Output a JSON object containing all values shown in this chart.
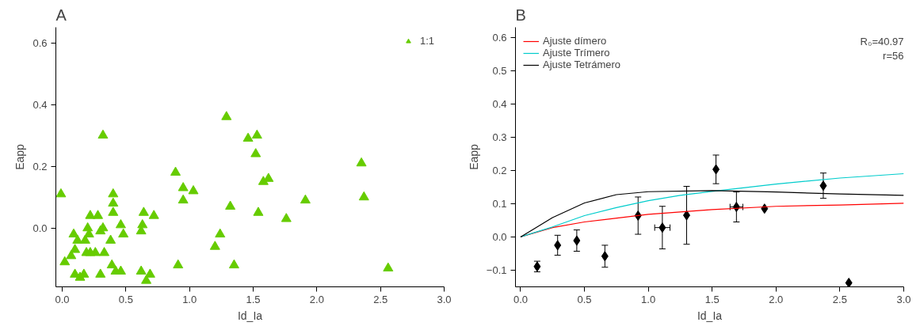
{
  "chart_data": [
    {
      "type": "scatter",
      "title": "A",
      "xlabel": "Id_Ia",
      "ylabel": "Eapp",
      "xlim": [
        -0.05,
        3.0
      ],
      "ylim": [
        -0.19,
        0.65
      ],
      "xticks": [
        {
          "value": 0,
          "label": "0.0"
        },
        0.5,
        {
          "value": 1,
          "label": "1.0"
        },
        1.5,
        {
          "value": 2,
          "label": "2.0"
        },
        2.5,
        {
          "value": 3,
          "label": "3.0"
        }
      ],
      "yticks": [
        {
          "value": 0,
          "label": "0.0"
        },
        0.2,
        0.4,
        0.6
      ],
      "grid": false,
      "legend": "top right",
      "marker": "triangle",
      "series": [
        {
          "name": "1:1",
          "color": "#66cc00",
          "x": [
            -0.01,
            0.02,
            0.07,
            0.09,
            0.1,
            0.12,
            0.1,
            0.14,
            0.17,
            0.18,
            0.2,
            0.21,
            0.22,
            0.19,
            0.22,
            0.26,
            0.28,
            0.3,
            0.32,
            0.32,
            0.33,
            0.3,
            0.38,
            0.39,
            0.4,
            0.4,
            0.4,
            0.42,
            0.46,
            0.46,
            0.48,
            0.62,
            0.63,
            0.64,
            0.62,
            0.69,
            0.66,
            0.72,
            0.89,
            0.95,
            0.95,
            1.03,
            0.91,
            1.29,
            1.32,
            1.24,
            1.2,
            1.35,
            1.46,
            1.53,
            1.52,
            1.58,
            1.62,
            1.54,
            1.76,
            1.91,
            2.35,
            2.37,
            2.56
          ],
          "values": [
            0.11,
            -0.11,
            -0.09,
            -0.02,
            -0.07,
            -0.04,
            -0.15,
            -0.16,
            -0.15,
            -0.04,
            0.0,
            -0.02,
            0.04,
            -0.08,
            -0.08,
            -0.08,
            0.04,
            -0.01,
            0.0,
            0.3,
            -0.08,
            -0.15,
            -0.04,
            -0.12,
            0.11,
            0.08,
            0.05,
            -0.14,
            -0.14,
            0.01,
            -0.02,
            -0.01,
            0.01,
            0.05,
            -0.14,
            -0.15,
            -0.17,
            0.04,
            0.18,
            0.13,
            0.09,
            0.12,
            -0.12,
            0.36,
            0.07,
            -0.02,
            -0.06,
            -0.12,
            0.29,
            0.3,
            0.24,
            0.15,
            0.16,
            0.05,
            0.03,
            0.09,
            0.21,
            0.1,
            -0.13
          ]
        }
      ]
    },
    {
      "type": "scatter",
      "title": "B",
      "xlabel": "Id_Ia",
      "ylabel": "Eapp",
      "xlim": [
        -0.04,
        3.0
      ],
      "ylim": [
        -0.15,
        0.63
      ],
      "xticks": [
        {
          "value": 0,
          "label": "0.0"
        },
        0.5,
        {
          "value": 1,
          "label": "1.0"
        },
        1.5,
        {
          "value": 2,
          "label": "2.0"
        },
        2.5,
        {
          "value": 3,
          "label": "3.0"
        }
      ],
      "yticks": [
        -0.1,
        {
          "value": 0,
          "label": "0.0"
        },
        0.1,
        0.2,
        0.3,
        0.4,
        0.5,
        0.6
      ],
      "grid": false,
      "legend": "top left",
      "annotations": [
        "R₀=40.97",
        "r=56"
      ],
      "series": [
        {
          "type": "scatter",
          "marker": "diamond",
          "color": "#000000",
          "x": [
            0.13,
            0.29,
            0.44,
            0.66,
            0.92,
            1.11,
            1.3,
            1.53,
            1.69,
            1.91,
            2.37,
            2.57
          ],
          "values": [
            -0.089,
            -0.025,
            -0.011,
            -0.058,
            0.064,
            0.028,
            0.065,
            0.203,
            0.09,
            0.085,
            0.154,
            -0.138
          ],
          "errors": [
            0.016,
            0.03,
            0.032,
            0.033,
            0.056,
            0.064,
            0.087,
            0.043,
            0.045,
            null,
            0.038,
            null
          ],
          "xerrors": [
            null,
            null,
            null,
            null,
            null,
            0.06,
            null,
            null,
            0.05,
            null,
            null,
            null
          ]
        },
        {
          "type": "line",
          "name": "Ajuste dímero",
          "color": "#ff0000",
          "x": [
            0,
            0.25,
            0.5,
            1.0,
            1.5,
            2.0,
            2.5,
            3.0
          ],
          "values": [
            0,
            0.028,
            0.045,
            0.068,
            0.082,
            0.092,
            0.096,
            0.101
          ]
        },
        {
          "type": "line",
          "name": "Ajuste Trímero",
          "color": "#00cccc",
          "x": [
            0,
            0.25,
            0.5,
            0.75,
            1.0,
            1.25,
            1.5,
            2.0,
            2.5,
            3.0
          ],
          "values": [
            0,
            0.03,
            0.064,
            0.088,
            0.109,
            0.125,
            0.137,
            0.159,
            0.177,
            0.19
          ]
        },
        {
          "type": "line",
          "name": "Ajuste Tetrámero",
          "color": "#000000",
          "x": [
            0,
            0.1,
            0.25,
            0.5,
            0.75,
            1.0,
            1.5,
            2.0,
            2.5,
            3.0
          ],
          "values": [
            0,
            0.023,
            0.058,
            0.102,
            0.127,
            0.136,
            0.139,
            0.135,
            0.129,
            0.125
          ]
        }
      ]
    }
  ]
}
